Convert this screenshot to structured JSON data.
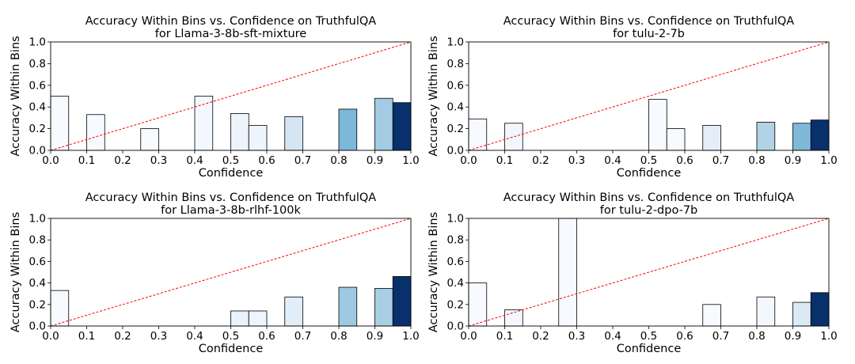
{
  "chart_data": [
    {
      "type": "bar",
      "title": "Accuracy Within Bins vs. Confidence on TruthfulQA",
      "subtitle": "for Llama-3-8b-sft-mixture",
      "xlabel": "Confidence",
      "ylabel": "Accuracy Within Bins",
      "xlim": [
        0.0,
        1.0
      ],
      "ylim": [
        0.0,
        1.0
      ],
      "xticks": [
        "0.0",
        "0.1",
        "0.2",
        "0.3",
        "0.4",
        "0.5",
        "0.6",
        "0.7",
        "0.8",
        "0.9",
        "1.0"
      ],
      "yticks": [
        "0.0",
        "0.2",
        "0.4",
        "0.6",
        "0.8",
        "1.0"
      ],
      "bin_width": 0.05,
      "diagonal": true,
      "bars": [
        {
          "x": 0.0,
          "y": 0.5,
          "color": "#f7fbff"
        },
        {
          "x": 0.1,
          "y": 0.33,
          "color": "#f7fbff"
        },
        {
          "x": 0.25,
          "y": 0.2,
          "color": "#f7fbff"
        },
        {
          "x": 0.4,
          "y": 0.5,
          "color": "#f3f8fe"
        },
        {
          "x": 0.5,
          "y": 0.34,
          "color": "#edf4fc"
        },
        {
          "x": 0.55,
          "y": 0.23,
          "color": "#eef5fc"
        },
        {
          "x": 0.65,
          "y": 0.31,
          "color": "#d5e5f4"
        },
        {
          "x": 0.8,
          "y": 0.38,
          "color": "#7db8da"
        },
        {
          "x": 0.9,
          "y": 0.48,
          "color": "#a3cce3"
        },
        {
          "x": 0.95,
          "y": 0.44,
          "color": "#08306b"
        }
      ]
    },
    {
      "type": "bar",
      "title": "Accuracy Within Bins vs. Confidence on TruthfulQA",
      "subtitle": "for tulu-2-7b",
      "xlabel": "Confidence",
      "ylabel": "Accuracy Within Bins",
      "xlim": [
        0.0,
        1.0
      ],
      "ylim": [
        0.0,
        1.0
      ],
      "xticks": [
        "0.0",
        "0.1",
        "0.2",
        "0.3",
        "0.4",
        "0.5",
        "0.6",
        "0.7",
        "0.8",
        "0.9",
        "1.0"
      ],
      "yticks": [
        "0.0",
        "0.2",
        "0.4",
        "0.6",
        "0.8",
        "1.0"
      ],
      "bin_width": 0.05,
      "diagonal": true,
      "bars": [
        {
          "x": 0.0,
          "y": 0.29,
          "color": "#f7fbff"
        },
        {
          "x": 0.1,
          "y": 0.25,
          "color": "#f1f7fd"
        },
        {
          "x": 0.5,
          "y": 0.47,
          "color": "#f7fbff"
        },
        {
          "x": 0.55,
          "y": 0.2,
          "color": "#f7fbff"
        },
        {
          "x": 0.65,
          "y": 0.23,
          "color": "#e3eef9"
        },
        {
          "x": 0.8,
          "y": 0.26,
          "color": "#b2d2e8"
        },
        {
          "x": 0.9,
          "y": 0.25,
          "color": "#7fb9da"
        },
        {
          "x": 0.95,
          "y": 0.28,
          "color": "#08306b"
        }
      ]
    },
    {
      "type": "bar",
      "title": "Accuracy Within Bins vs. Confidence on TruthfulQA",
      "subtitle": "for Llama-3-8b-rlhf-100k",
      "xlabel": "Confidence",
      "ylabel": "Accuracy Within Bins",
      "xlim": [
        0.0,
        1.0
      ],
      "ylim": [
        0.0,
        1.0
      ],
      "xticks": [
        "0.0",
        "0.1",
        "0.2",
        "0.3",
        "0.4",
        "0.5",
        "0.6",
        "0.7",
        "0.8",
        "0.9",
        "1.0"
      ],
      "yticks": [
        "0.0",
        "0.2",
        "0.4",
        "0.6",
        "0.8",
        "1.0"
      ],
      "bin_width": 0.05,
      "diagonal": true,
      "bars": [
        {
          "x": 0.0,
          "y": 0.33,
          "color": "#f7fbff"
        },
        {
          "x": 0.5,
          "y": 0.14,
          "color": "#eaf3fb"
        },
        {
          "x": 0.55,
          "y": 0.14,
          "color": "#eef5fc"
        },
        {
          "x": 0.65,
          "y": 0.27,
          "color": "#e1edf8"
        },
        {
          "x": 0.8,
          "y": 0.36,
          "color": "#9ecae1"
        },
        {
          "x": 0.9,
          "y": 0.35,
          "color": "#a9cfe5"
        },
        {
          "x": 0.95,
          "y": 0.46,
          "color": "#08306b"
        }
      ]
    },
    {
      "type": "bar",
      "title": "Accuracy Within Bins vs. Confidence on TruthfulQA",
      "subtitle": "for tulu-2-dpo-7b",
      "xlabel": "Confidence",
      "ylabel": "Accuracy Within Bins",
      "xlim": [
        0.0,
        1.0
      ],
      "ylim": [
        0.0,
        1.0
      ],
      "xticks": [
        "0.0",
        "0.1",
        "0.2",
        "0.3",
        "0.4",
        "0.5",
        "0.6",
        "0.7",
        "0.8",
        "0.9",
        "1.0"
      ],
      "yticks": [
        "0.0",
        "0.2",
        "0.4",
        "0.6",
        "0.8",
        "1.0"
      ],
      "bin_width": 0.05,
      "diagonal": true,
      "bars": [
        {
          "x": 0.0,
          "y": 0.4,
          "color": "#f7fbff"
        },
        {
          "x": 0.1,
          "y": 0.15,
          "color": "#f2f8fd"
        },
        {
          "x": 0.25,
          "y": 1.0,
          "color": "#f7fbff"
        },
        {
          "x": 0.65,
          "y": 0.2,
          "color": "#f7fbff"
        },
        {
          "x": 0.8,
          "y": 0.27,
          "color": "#f3f8fe"
        },
        {
          "x": 0.9,
          "y": 0.22,
          "color": "#dceaf6"
        },
        {
          "x": 0.95,
          "y": 0.31,
          "color": "#08306b"
        }
      ]
    }
  ]
}
